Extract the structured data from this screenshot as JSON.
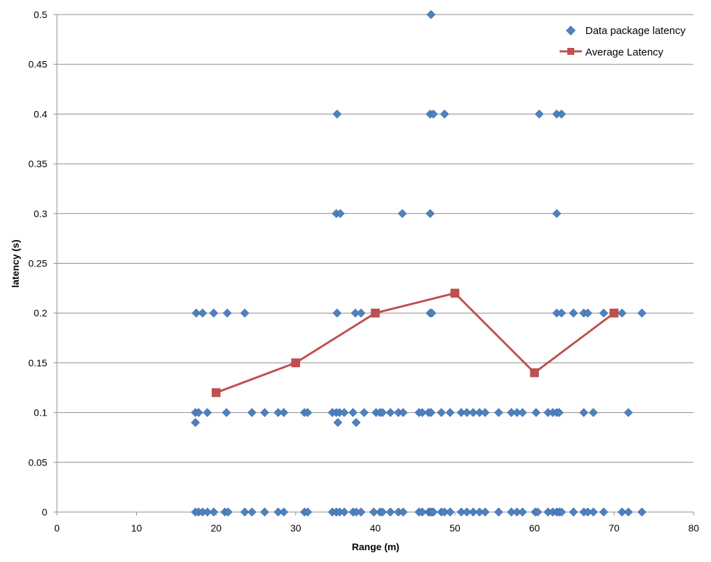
{
  "chart_data": {
    "type": "scatter",
    "title": "",
    "xlabel": "Range (m)",
    "ylabel": "latency (s)",
    "xlim": [
      0,
      80
    ],
    "ylim": [
      0,
      0.5
    ],
    "xticks": [
      0,
      10,
      20,
      30,
      40,
      50,
      60,
      70,
      80
    ],
    "yticks": [
      0,
      0.05,
      0.1,
      0.15,
      0.2,
      0.25,
      0.3,
      0.35,
      0.4,
      0.45,
      0.5
    ],
    "grid": "horizontal",
    "legend_position": "top-right",
    "series": [
      {
        "name": "Data package latency",
        "type": "scatter",
        "marker": "diamond",
        "color": "#4f81bd",
        "points": [
          [
            17.5,
            0.2
          ],
          [
            18.3,
            0.2
          ],
          [
            19.7,
            0.2
          ],
          [
            21.4,
            0.2
          ],
          [
            23.6,
            0.2
          ],
          [
            35.2,
            0.2
          ],
          [
            37.5,
            0.2
          ],
          [
            38.2,
            0.2
          ],
          [
            46.9,
            0.2
          ],
          [
            47.1,
            0.2
          ],
          [
            62.8,
            0.2
          ],
          [
            63.4,
            0.2
          ],
          [
            64.9,
            0.2
          ],
          [
            66.2,
            0.2
          ],
          [
            66.7,
            0.2
          ],
          [
            68.7,
            0.2
          ],
          [
            71.0,
            0.2
          ],
          [
            73.5,
            0.2
          ],
          [
            47.0,
            0.5
          ],
          [
            35.2,
            0.4
          ],
          [
            46.9,
            0.4
          ],
          [
            47.3,
            0.4
          ],
          [
            48.7,
            0.4
          ],
          [
            60.6,
            0.4
          ],
          [
            62.8,
            0.4
          ],
          [
            63.4,
            0.4
          ],
          [
            35.1,
            0.3
          ],
          [
            35.6,
            0.3
          ],
          [
            43.4,
            0.3
          ],
          [
            46.9,
            0.3
          ],
          [
            62.8,
            0.3
          ],
          [
            17.4,
            0.1
          ],
          [
            17.8,
            0.1
          ],
          [
            18.9,
            0.1
          ],
          [
            21.3,
            0.1
          ],
          [
            24.5,
            0.1
          ],
          [
            26.1,
            0.1
          ],
          [
            27.8,
            0.1
          ],
          [
            28.5,
            0.1
          ],
          [
            31.1,
            0.1
          ],
          [
            31.5,
            0.1
          ],
          [
            34.6,
            0.1
          ],
          [
            35.1,
            0.1
          ],
          [
            35.5,
            0.1
          ],
          [
            36.1,
            0.1
          ],
          [
            37.2,
            0.1
          ],
          [
            38.6,
            0.1
          ],
          [
            40.1,
            0.1
          ],
          [
            40.6,
            0.1
          ],
          [
            40.9,
            0.1
          ],
          [
            41.9,
            0.1
          ],
          [
            42.9,
            0.1
          ],
          [
            43.5,
            0.1
          ],
          [
            45.5,
            0.1
          ],
          [
            45.9,
            0.1
          ],
          [
            46.7,
            0.1
          ],
          [
            47.0,
            0.1
          ],
          [
            48.3,
            0.1
          ],
          [
            49.4,
            0.1
          ],
          [
            50.8,
            0.1
          ],
          [
            51.5,
            0.1
          ],
          [
            52.3,
            0.1
          ],
          [
            53.1,
            0.1
          ],
          [
            53.8,
            0.1
          ],
          [
            55.5,
            0.1
          ],
          [
            57.1,
            0.1
          ],
          [
            57.8,
            0.1
          ],
          [
            58.5,
            0.1
          ],
          [
            60.2,
            0.1
          ],
          [
            61.7,
            0.1
          ],
          [
            62.3,
            0.1
          ],
          [
            62.8,
            0.1
          ],
          [
            63.1,
            0.1
          ],
          [
            66.2,
            0.1
          ],
          [
            67.4,
            0.1
          ],
          [
            71.8,
            0.1
          ],
          [
            17.4,
            0.09
          ],
          [
            35.3,
            0.09
          ],
          [
            37.6,
            0.09
          ],
          [
            17.4,
            0
          ],
          [
            17.8,
            0
          ],
          [
            18.3,
            0
          ],
          [
            18.9,
            0
          ],
          [
            19.7,
            0
          ],
          [
            21.1,
            0
          ],
          [
            21.5,
            0
          ],
          [
            23.6,
            0
          ],
          [
            24.5,
            0
          ],
          [
            26.1,
            0
          ],
          [
            27.8,
            0
          ],
          [
            28.5,
            0
          ],
          [
            31.1,
            0
          ],
          [
            31.5,
            0
          ],
          [
            34.6,
            0
          ],
          [
            35.1,
            0
          ],
          [
            35.5,
            0
          ],
          [
            36.1,
            0
          ],
          [
            37.2,
            0
          ],
          [
            37.6,
            0
          ],
          [
            38.2,
            0
          ],
          [
            39.8,
            0
          ],
          [
            40.6,
            0
          ],
          [
            40.9,
            0
          ],
          [
            41.9,
            0
          ],
          [
            42.9,
            0
          ],
          [
            43.5,
            0
          ],
          [
            45.5,
            0
          ],
          [
            45.9,
            0
          ],
          [
            46.7,
            0
          ],
          [
            46.9,
            0
          ],
          [
            47.1,
            0
          ],
          [
            47.3,
            0
          ],
          [
            48.3,
            0
          ],
          [
            48.7,
            0
          ],
          [
            49.4,
            0
          ],
          [
            50.8,
            0
          ],
          [
            51.5,
            0
          ],
          [
            52.3,
            0
          ],
          [
            53.1,
            0
          ],
          [
            53.8,
            0
          ],
          [
            55.5,
            0
          ],
          [
            57.1,
            0
          ],
          [
            57.8,
            0
          ],
          [
            58.5,
            0
          ],
          [
            60.1,
            0
          ],
          [
            60.4,
            0
          ],
          [
            61.7,
            0
          ],
          [
            62.3,
            0
          ],
          [
            62.8,
            0
          ],
          [
            63.1,
            0
          ],
          [
            63.4,
            0
          ],
          [
            64.9,
            0
          ],
          [
            66.2,
            0
          ],
          [
            66.7,
            0
          ],
          [
            67.4,
            0
          ],
          [
            68.7,
            0
          ],
          [
            71.0,
            0
          ],
          [
            71.8,
            0
          ],
          [
            73.5,
            0
          ]
        ]
      },
      {
        "name": "Average Latency",
        "type": "line",
        "marker": "square",
        "color": "#c0504d",
        "points": [
          [
            20,
            0.12
          ],
          [
            30,
            0.15
          ],
          [
            40,
            0.2
          ],
          [
            50,
            0.22
          ],
          [
            60,
            0.14
          ],
          [
            70,
            0.2
          ]
        ]
      }
    ]
  }
}
